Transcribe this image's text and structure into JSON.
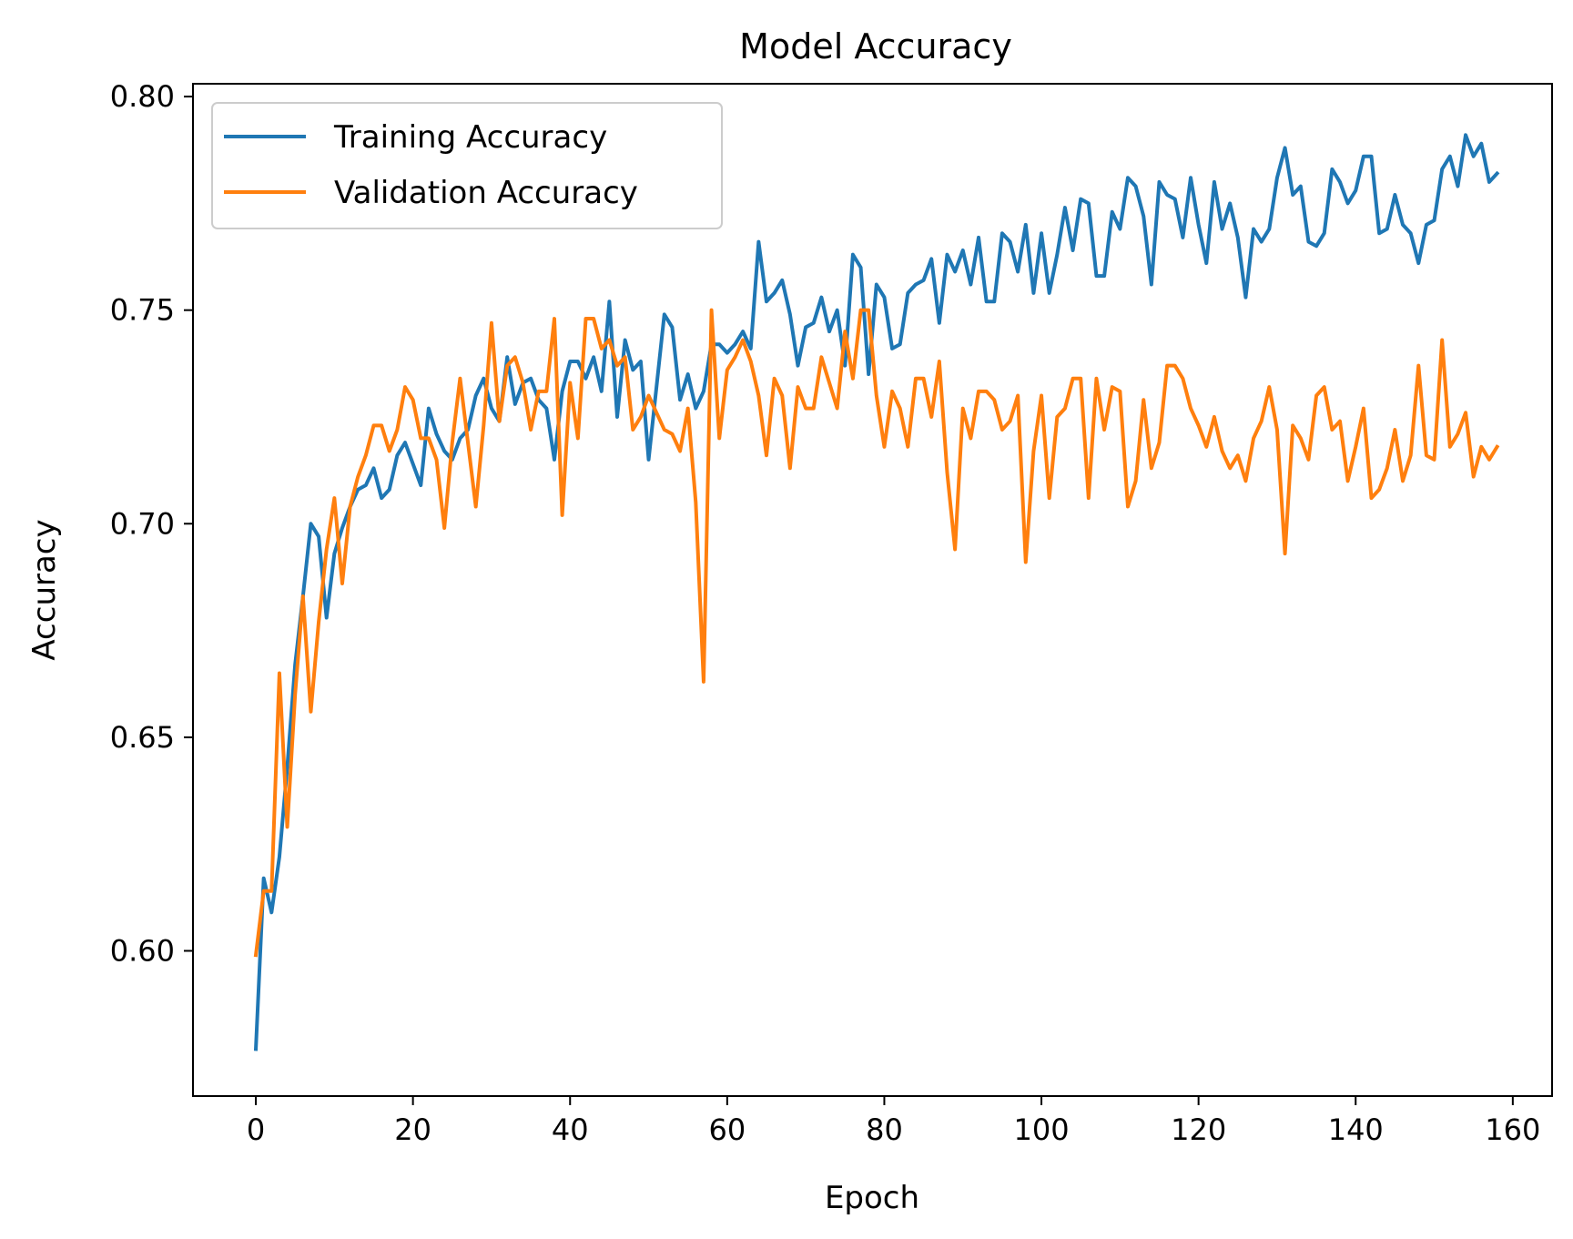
{
  "chart_data": {
    "type": "line",
    "title": "Model Accuracy",
    "xlabel": "Epoch",
    "ylabel": "Accuracy",
    "xlim": [
      -8,
      165
    ],
    "ylim": [
      0.566,
      0.803
    ],
    "xticks": [
      0,
      20,
      40,
      60,
      80,
      100,
      120,
      140,
      160
    ],
    "xtick_labels": [
      "0",
      "20",
      "40",
      "60",
      "80",
      "100",
      "120",
      "140",
      "160"
    ],
    "yticks": [
      0.6,
      0.65,
      0.7,
      0.75,
      0.8
    ],
    "ytick_labels": [
      "0.60",
      "0.65",
      "0.70",
      "0.75",
      "0.80"
    ],
    "grid": false,
    "legend_position": "upper-left",
    "series": [
      {
        "name": "Training Accuracy",
        "color": "#1f77b4",
        "x": [
          0,
          1,
          2,
          3,
          4,
          5,
          6,
          7,
          8,
          9,
          10,
          11,
          12,
          13,
          14,
          15,
          16,
          17,
          18,
          19,
          20,
          21,
          22,
          23,
          24,
          25,
          26,
          27,
          28,
          29,
          30,
          31,
          32,
          33,
          34,
          35,
          36,
          37,
          38,
          39,
          40,
          41,
          42,
          43,
          44,
          45,
          46,
          47,
          48,
          49,
          50,
          51,
          52,
          53,
          54,
          55,
          56,
          57,
          58,
          59,
          60,
          61,
          62,
          63,
          64,
          65,
          66,
          67,
          68,
          69,
          70,
          71,
          72,
          73,
          74,
          75,
          76,
          77,
          78,
          79,
          80,
          81,
          82,
          83,
          84,
          85,
          86,
          87,
          88,
          89,
          90,
          91,
          92,
          93,
          94,
          95,
          96,
          97,
          98,
          99,
          100,
          101,
          102,
          103,
          104,
          105,
          106,
          107,
          108,
          109,
          110,
          111,
          112,
          113,
          114,
          115,
          116,
          117,
          118,
          119,
          120,
          121,
          122,
          123,
          124,
          125,
          126,
          127,
          128,
          129,
          130,
          131,
          132,
          133,
          134,
          135,
          136,
          137,
          138,
          139,
          140,
          141,
          142,
          143,
          144,
          145,
          146,
          147,
          148,
          149,
          150,
          151,
          152,
          153,
          154,
          155,
          156,
          157,
          158
        ],
        "y": [
          0.577,
          0.617,
          0.609,
          0.622,
          0.643,
          0.667,
          0.683,
          0.7,
          0.697,
          0.678,
          0.693,
          0.699,
          0.704,
          0.708,
          0.709,
          0.713,
          0.706,
          0.708,
          0.716,
          0.719,
          0.714,
          0.709,
          0.727,
          0.721,
          0.717,
          0.715,
          0.72,
          0.722,
          0.73,
          0.734,
          0.727,
          0.724,
          0.739,
          0.728,
          0.733,
          0.734,
          0.729,
          0.727,
          0.715,
          0.731,
          0.738,
          0.738,
          0.734,
          0.739,
          0.731,
          0.752,
          0.725,
          0.743,
          0.736,
          0.738,
          0.715,
          0.732,
          0.749,
          0.746,
          0.729,
          0.735,
          0.727,
          0.731,
          0.742,
          0.742,
          0.74,
          0.742,
          0.745,
          0.741,
          0.766,
          0.752,
          0.754,
          0.757,
          0.749,
          0.737,
          0.746,
          0.747,
          0.753,
          0.745,
          0.75,
          0.737,
          0.763,
          0.76,
          0.735,
          0.756,
          0.753,
          0.741,
          0.742,
          0.754,
          0.756,
          0.757,
          0.762,
          0.747,
          0.763,
          0.759,
          0.764,
          0.756,
          0.767,
          0.752,
          0.752,
          0.768,
          0.766,
          0.759,
          0.77,
          0.754,
          0.768,
          0.754,
          0.763,
          0.774,
          0.764,
          0.776,
          0.775,
          0.758,
          0.758,
          0.773,
          0.769,
          0.781,
          0.779,
          0.772,
          0.756,
          0.78,
          0.777,
          0.776,
          0.767,
          0.781,
          0.77,
          0.761,
          0.78,
          0.769,
          0.775,
          0.767,
          0.753,
          0.769,
          0.766,
          0.769,
          0.781,
          0.788,
          0.777,
          0.779,
          0.766,
          0.765,
          0.768,
          0.783,
          0.78,
          0.775,
          0.778,
          0.786,
          0.786,
          0.768,
          0.769,
          0.777,
          0.77,
          0.768,
          0.761,
          0.77,
          0.771,
          0.783,
          0.786,
          0.779,
          0.791,
          0.786,
          0.789,
          0.78,
          0.782
        ]
      },
      {
        "name": "Validation Accuracy",
        "color": "#ff7f0e",
        "x": [
          0,
          1,
          2,
          3,
          4,
          5,
          6,
          7,
          8,
          9,
          10,
          11,
          12,
          13,
          14,
          15,
          16,
          17,
          18,
          19,
          20,
          21,
          22,
          23,
          24,
          25,
          26,
          27,
          28,
          29,
          30,
          31,
          32,
          33,
          34,
          35,
          36,
          37,
          38,
          39,
          40,
          41,
          42,
          43,
          44,
          45,
          46,
          47,
          48,
          49,
          50,
          51,
          52,
          53,
          54,
          55,
          56,
          57,
          58,
          59,
          60,
          61,
          62,
          63,
          64,
          65,
          66,
          67,
          68,
          69,
          70,
          71,
          72,
          73,
          74,
          75,
          76,
          77,
          78,
          79,
          80,
          81,
          82,
          83,
          84,
          85,
          86,
          87,
          88,
          89,
          90,
          91,
          92,
          93,
          94,
          95,
          96,
          97,
          98,
          99,
          100,
          101,
          102,
          103,
          104,
          105,
          106,
          107,
          108,
          109,
          110,
          111,
          112,
          113,
          114,
          115,
          116,
          117,
          118,
          119,
          120,
          121,
          122,
          123,
          124,
          125,
          126,
          127,
          128,
          129,
          130,
          131,
          132,
          133,
          134,
          135,
          136,
          137,
          138,
          139,
          140,
          141,
          142,
          143,
          144,
          145,
          146,
          147,
          148,
          149,
          150,
          151,
          152,
          153,
          154,
          155,
          156,
          157,
          158
        ],
        "y": [
          0.599,
          0.614,
          0.614,
          0.665,
          0.629,
          0.66,
          0.683,
          0.656,
          0.677,
          0.694,
          0.706,
          0.686,
          0.704,
          0.711,
          0.716,
          0.723,
          0.723,
          0.717,
          0.722,
          0.732,
          0.729,
          0.72,
          0.72,
          0.715,
          0.699,
          0.719,
          0.734,
          0.719,
          0.704,
          0.723,
          0.747,
          0.724,
          0.737,
          0.739,
          0.733,
          0.722,
          0.731,
          0.731,
          0.748,
          0.702,
          0.733,
          0.72,
          0.748,
          0.748,
          0.741,
          0.743,
          0.737,
          0.739,
          0.722,
          0.725,
          0.73,
          0.726,
          0.722,
          0.721,
          0.717,
          0.727,
          0.705,
          0.663,
          0.75,
          0.72,
          0.736,
          0.739,
          0.743,
          0.738,
          0.73,
          0.716,
          0.734,
          0.73,
          0.713,
          0.732,
          0.727,
          0.727,
          0.739,
          0.733,
          0.727,
          0.745,
          0.734,
          0.75,
          0.75,
          0.73,
          0.718,
          0.731,
          0.727,
          0.718,
          0.734,
          0.734,
          0.725,
          0.738,
          0.712,
          0.694,
          0.727,
          0.72,
          0.731,
          0.731,
          0.729,
          0.722,
          0.724,
          0.73,
          0.691,
          0.717,
          0.73,
          0.706,
          0.725,
          0.727,
          0.734,
          0.734,
          0.706,
          0.734,
          0.722,
          0.732,
          0.731,
          0.704,
          0.71,
          0.729,
          0.713,
          0.719,
          0.737,
          0.737,
          0.734,
          0.727,
          0.723,
          0.718,
          0.725,
          0.717,
          0.713,
          0.716,
          0.71,
          0.72,
          0.724,
          0.732,
          0.722,
          0.693,
          0.723,
          0.72,
          0.715,
          0.73,
          0.732,
          0.722,
          0.724,
          0.71,
          0.718,
          0.727,
          0.706,
          0.708,
          0.713,
          0.722,
          0.71,
          0.716,
          0.737,
          0.716,
          0.715,
          0.743,
          0.718,
          0.721,
          0.726,
          0.711,
          0.718,
          0.715,
          0.718
        ]
      }
    ]
  }
}
